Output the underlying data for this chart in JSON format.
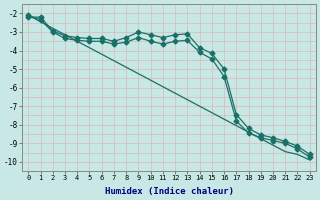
{
  "xlabel": "Humidex (Indice chaleur)",
  "x": [
    0,
    1,
    2,
    3,
    4,
    5,
    6,
    7,
    8,
    9,
    10,
    11,
    12,
    13,
    14,
    15,
    16,
    17,
    18,
    19,
    20,
    21,
    22,
    23
  ],
  "line_straight": [
    -2.1,
    -2.45,
    -2.8,
    -3.15,
    -3.5,
    -3.85,
    -4.2,
    -4.55,
    -4.9,
    -5.25,
    -5.6,
    -5.95,
    -6.3,
    -6.65,
    -7.0,
    -7.35,
    -7.7,
    -8.05,
    -8.4,
    -8.75,
    -9.1,
    -9.45,
    -9.6,
    -9.9
  ],
  "line_markers_upper": [
    -2.2,
    -2.2,
    -2.95,
    -3.2,
    -3.3,
    -3.35,
    -3.35,
    -3.5,
    -3.3,
    -3.0,
    -3.15,
    -3.3,
    -3.15,
    -3.1,
    -3.85,
    -4.15,
    -5.0,
    -7.45,
    -8.2,
    -8.55,
    -8.7,
    -8.9,
    -9.15,
    -9.6
  ],
  "line_markers_lower": [
    -2.1,
    -2.35,
    -3.0,
    -3.35,
    -3.45,
    -3.5,
    -3.5,
    -3.65,
    -3.55,
    -3.3,
    -3.5,
    -3.65,
    -3.5,
    -3.45,
    -4.1,
    -4.45,
    -5.4,
    -7.8,
    -8.45,
    -8.7,
    -8.85,
    -9.0,
    -9.3,
    -9.75
  ],
  "ylim_min": -10.5,
  "ylim_max": -1.5,
  "yticks": [
    -2,
    -3,
    -4,
    -5,
    -6,
    -7,
    -8,
    -9,
    -10
  ],
  "bg_color": "#c8e8e5",
  "line_color": "#1a7068",
  "grid_color": "#d8b8b8"
}
